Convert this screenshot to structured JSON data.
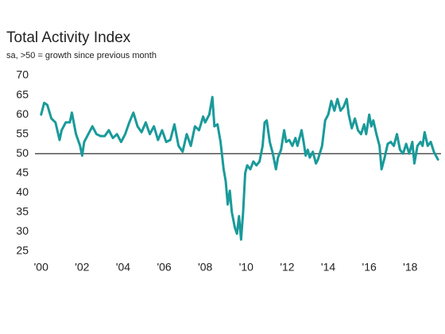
{
  "chart_data": {
    "type": "line",
    "title": "Total Activity Index",
    "subtitle": "sa, >50 = growth since previous month",
    "color": "#1a9a9a",
    "reference_line": 50,
    "xlim": [
      1999.7,
      2019.5
    ],
    "xticks": [
      {
        "value": 2000,
        "label": "'00"
      },
      {
        "value": 2002,
        "label": "'02"
      },
      {
        "value": 2004,
        "label": "'04"
      },
      {
        "value": 2006,
        "label": "'06"
      },
      {
        "value": 2008,
        "label": "'08"
      },
      {
        "value": 2010,
        "label": "'10"
      },
      {
        "value": 2012,
        "label": "'12"
      },
      {
        "value": 2014,
        "label": "'14"
      },
      {
        "value": 2016,
        "label": "'16"
      },
      {
        "value": 2018,
        "label": "'18"
      }
    ],
    "ylim": [
      25,
      70
    ],
    "yticks": [
      25,
      30,
      35,
      40,
      45,
      50,
      55,
      60,
      65,
      70
    ],
    "x": [
      2000.0,
      2000.15,
      2000.3,
      2000.5,
      2000.7,
      2000.9,
      2001.0,
      2001.2,
      2001.4,
      2001.5,
      2001.7,
      2001.9,
      2002.0,
      2002.1,
      2002.3,
      2002.5,
      2002.7,
      2002.9,
      2003.1,
      2003.3,
      2003.5,
      2003.7,
      2003.9,
      2004.1,
      2004.3,
      2004.5,
      2004.7,
      2004.9,
      2005.1,
      2005.3,
      2005.5,
      2005.7,
      2005.9,
      2006.1,
      2006.3,
      2006.5,
      2006.7,
      2006.9,
      2007.1,
      2007.3,
      2007.5,
      2007.7,
      2007.9,
      2008.0,
      2008.2,
      2008.35,
      2008.45,
      2008.6,
      2008.75,
      2008.9,
      2009.0,
      2009.1,
      2009.2,
      2009.3,
      2009.45,
      2009.55,
      2009.65,
      2009.75,
      2009.85,
      2009.95,
      2010.05,
      2010.2,
      2010.35,
      2010.5,
      2010.65,
      2010.8,
      2010.9,
      2011.0,
      2011.15,
      2011.3,
      2011.45,
      2011.55,
      2011.7,
      2011.85,
      2011.95,
      2012.1,
      2012.25,
      2012.4,
      2012.5,
      2012.7,
      2012.8,
      2012.9,
      2013.0,
      2013.1,
      2013.25,
      2013.4,
      2013.5,
      2013.7,
      2013.85,
      2014.0,
      2014.15,
      2014.3,
      2014.45,
      2014.6,
      2014.75,
      2014.9,
      2015.0,
      2015.15,
      2015.3,
      2015.45,
      2015.6,
      2015.75,
      2015.85,
      2016.0,
      2016.1,
      2016.2,
      2016.35,
      2016.5,
      2016.6,
      2016.75,
      2016.9,
      2017.05,
      2017.2,
      2017.35,
      2017.5,
      2017.65,
      2017.8,
      2017.95,
      2018.1,
      2018.2,
      2018.35,
      2018.5,
      2018.6,
      2018.7,
      2018.85,
      2019.0,
      2019.15,
      2019.25,
      2019.35
    ],
    "values": [
      60,
      63,
      62.5,
      59,
      58,
      53.5,
      56,
      58,
      58,
      60.5,
      55,
      52,
      49.5,
      53,
      55,
      57,
      55,
      54.5,
      54.5,
      56,
      54,
      55,
      53,
      55,
      58,
      60.5,
      57,
      55.5,
      58,
      55,
      57,
      53.5,
      56,
      53,
      53.5,
      57.5,
      52,
      50.5,
      55,
      52,
      57,
      56,
      59.5,
      58,
      60,
      64.5,
      57,
      57.5,
      53,
      46,
      43,
      37,
      40.5,
      35,
      31,
      29.5,
      34,
      28,
      35,
      45,
      47,
      46,
      48,
      47,
      48,
      52,
      58,
      58.5,
      53,
      50,
      46,
      49,
      51,
      56,
      53,
      53.5,
      52,
      54,
      52,
      56,
      53,
      49.5,
      51,
      49,
      50.5,
      47.5,
      48.5,
      52,
      58.5,
      60,
      63.5,
      61,
      64,
      61,
      62,
      64,
      60,
      56.5,
      59,
      56,
      55,
      57.5,
      55,
      60,
      57,
      58.5,
      55,
      52,
      46,
      49,
      52.5,
      53,
      52,
      55,
      51,
      50,
      52.5,
      50,
      53,
      47.5,
      52,
      53,
      52,
      55.5,
      52,
      53,
      50.5,
      49.5,
      48.5
    ]
  }
}
